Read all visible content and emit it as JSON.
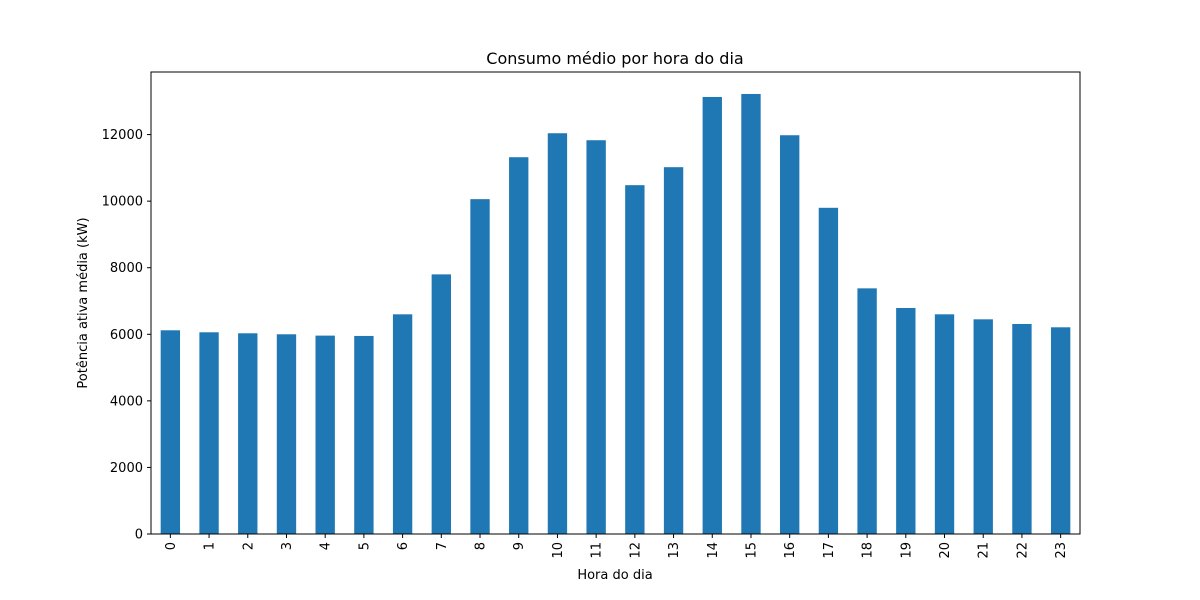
{
  "chart_data": {
    "type": "bar",
    "title": "Consumo médio por hora do dia",
    "xlabel": "Hora do dia",
    "ylabel": "Potência ativa média (kW)",
    "categories": [
      "0",
      "1",
      "2",
      "3",
      "4",
      "5",
      "6",
      "7",
      "8",
      "9",
      "10",
      "11",
      "12",
      "13",
      "14",
      "15",
      "16",
      "17",
      "18",
      "19",
      "20",
      "21",
      "22",
      "23"
    ],
    "values": [
      6120,
      6060,
      6030,
      6000,
      5960,
      5950,
      6600,
      7800,
      10060,
      11320,
      12040,
      11830,
      10480,
      11020,
      13130,
      13220,
      11980,
      9800,
      7380,
      6790,
      6600,
      6450,
      6310,
      6210
    ],
    "yticks": [
      0,
      2000,
      4000,
      6000,
      8000,
      10000,
      12000
    ],
    "ylim": [
      0,
      13880
    ],
    "grid": false,
    "legend": "none",
    "bar_color": "#1f77b4"
  }
}
